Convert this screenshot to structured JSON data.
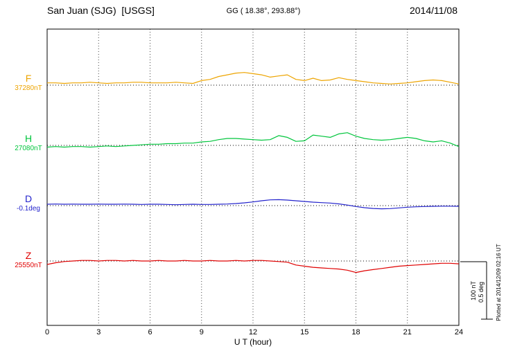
{
  "header": {
    "station": "San Juan (SJG)  [USGS]",
    "coords": "GG ( 18.38°, 293.88°)",
    "date": "2014/11/08"
  },
  "chart_data": {
    "type": "line",
    "title": "San Juan (SJG) [USGS] magnetogram 2014/11/08",
    "xlabel": "U T (hour)",
    "ylabel": "",
    "x_range": [
      0,
      24
    ],
    "x_ticks": [
      0,
      3,
      6,
      9,
      12,
      15,
      18,
      21,
      24
    ],
    "x_step_hours": 0.5,
    "grid": "dotted vertical gridlines every 3 h; dotted horizontal baseline per trace",
    "legend_position": "left margin labels",
    "series": [
      {
        "name": "F",
        "baseline_label": "37280nT",
        "baseline_value": 37280,
        "unit": "nT",
        "color": "#eda400",
        "values": [
          4,
          4,
          3,
          4,
          4,
          5,
          4,
          3,
          4,
          4,
          5,
          5,
          4,
          4,
          4,
          5,
          4,
          3,
          8,
          10,
          15,
          18,
          21,
          22,
          20,
          18,
          14,
          16,
          18,
          10,
          8,
          12,
          8,
          9,
          13,
          10,
          8,
          6,
          4,
          3,
          2,
          3,
          4,
          6,
          8,
          9,
          8,
          5,
          2
        ]
      },
      {
        "name": "H",
        "baseline_label": "27080nT",
        "baseline_value": 27080,
        "unit": "nT",
        "color": "#00c53c",
        "values": [
          -3,
          -2,
          -3,
          -2,
          -2,
          -3,
          -2,
          -1,
          -2,
          -1,
          0,
          1,
          2,
          2,
          3,
          3,
          4,
          4,
          6,
          7,
          10,
          12,
          12,
          11,
          10,
          9,
          10,
          17,
          14,
          7,
          8,
          18,
          16,
          14,
          20,
          22,
          16,
          12,
          10,
          9,
          10,
          12,
          14,
          12,
          8,
          6,
          8,
          4,
          -2
        ]
      },
      {
        "name": "D",
        "baseline_label": "-0.1deg",
        "baseline_value": -0.1,
        "unit": "deg",
        "color": "#2222cc",
        "values": [
          0.012,
          0.014,
          0.012,
          0.013,
          0.012,
          0.012,
          0.013,
          0.012,
          0.012,
          0.013,
          0.012,
          0.01,
          0.012,
          0.012,
          0.01,
          0.008,
          0.01,
          0.012,
          0.01,
          0.01,
          0.012,
          0.014,
          0.018,
          0.024,
          0.032,
          0.042,
          0.05,
          0.052,
          0.048,
          0.042,
          0.036,
          0.03,
          0.026,
          0.022,
          0.015,
          0.005,
          -0.008,
          -0.018,
          -0.025,
          -0.028,
          -0.026,
          -0.02,
          -0.014,
          -0.01,
          -0.008,
          -0.006,
          -0.005,
          -0.005,
          -0.006
        ]
      },
      {
        "name": "Z",
        "baseline_label": "25550nT",
        "baseline_value": 25550,
        "unit": "nT",
        "color": "#e00000",
        "values": [
          -6,
          -3,
          -1,
          0,
          1,
          1,
          0,
          1,
          1,
          0,
          1,
          0,
          0,
          1,
          0,
          0,
          1,
          0,
          0,
          1,
          0,
          0,
          1,
          0,
          1,
          1,
          0,
          -1,
          -2,
          -7,
          -9,
          -11,
          -12,
          -13,
          -14,
          -16,
          -20,
          -17,
          -15,
          -13,
          -11,
          -9,
          -8,
          -7,
          -6,
          -5,
          -4,
          -4,
          -5
        ]
      }
    ],
    "scale_bar": {
      "nt_label": "100 nT",
      "deg_label": "0.5 deg"
    },
    "plotted_at": "Plotted at 2014/12/09 02:16 UT"
  }
}
